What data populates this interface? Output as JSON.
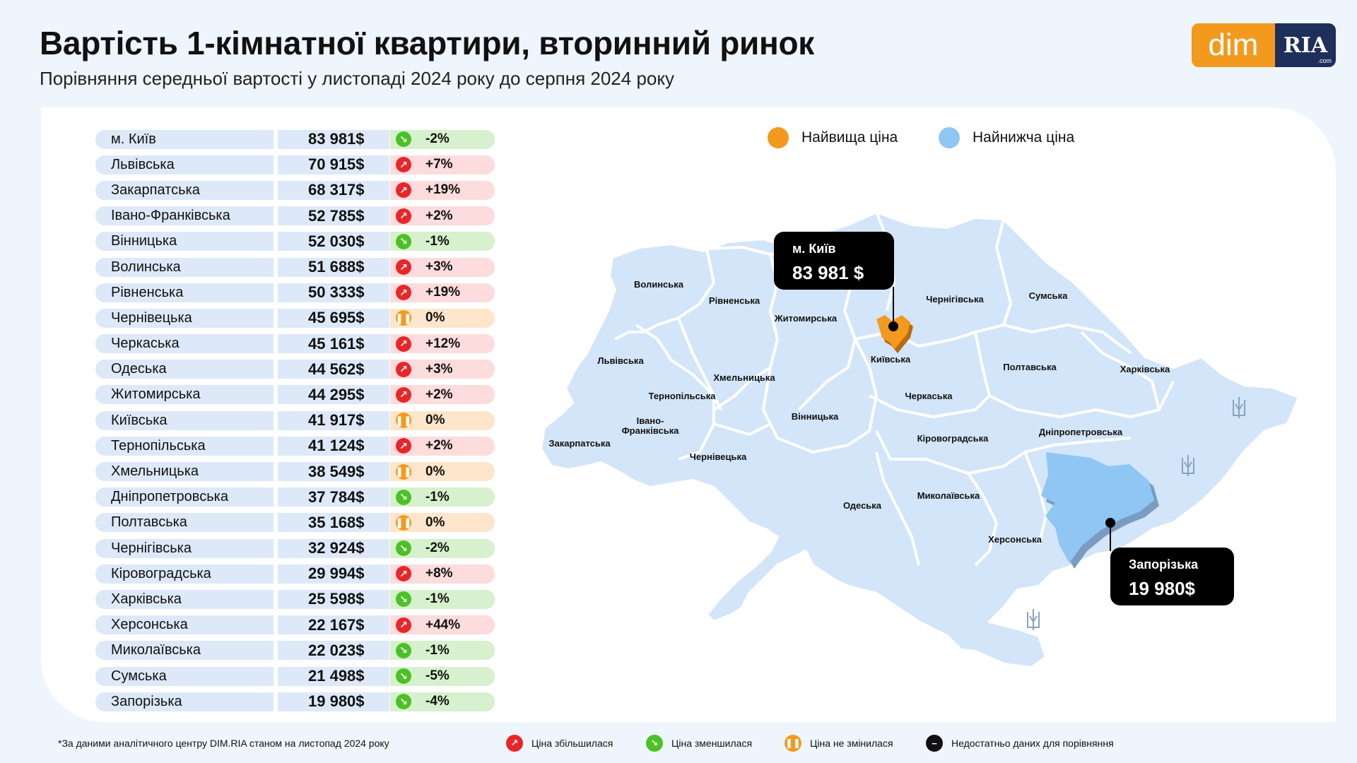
{
  "header": {
    "title": "Вартість 1-кімнатної квартири, вторинний ринок",
    "subtitle": "Порівняння середньої вартості у листопаді 2024 року до серпня 2024 року"
  },
  "logo": {
    "dim": "dim",
    "ria": "RIA",
    "com": ".com"
  },
  "colors": {
    "increase": "#e8262a",
    "decrease": "#4cc127",
    "unchanged": "#f39a1e",
    "highest": "#f39a1e",
    "lowest": "#8fc6f4",
    "map_fill": "#d3e5f8",
    "brand_blue": "#1f2f5c"
  },
  "table": [
    {
      "name": "м. Київ",
      "price": "83 981$",
      "change": "-2%",
      "trend": "down"
    },
    {
      "name": "Львівська",
      "price": "70 915$",
      "change": "+7%",
      "trend": "up"
    },
    {
      "name": "Закарпатська",
      "price": "68 317$",
      "change": "+19%",
      "trend": "up"
    },
    {
      "name": "Івано-Франківська",
      "price": "52 785$",
      "change": "+2%",
      "trend": "up"
    },
    {
      "name": "Вінницька",
      "price": "52 030$",
      "change": "-1%",
      "trend": "down"
    },
    {
      "name": "Волинська",
      "price": "51 688$",
      "change": "+3%",
      "trend": "up"
    },
    {
      "name": "Рівненська",
      "price": "50 333$",
      "change": "+19%",
      "trend": "up"
    },
    {
      "name": "Чернівецька",
      "price": "45 695$",
      "change": "0%",
      "trend": "flat"
    },
    {
      "name": "Черкаська",
      "price": "45 161$",
      "change": "+12%",
      "trend": "up"
    },
    {
      "name": "Одеська",
      "price": "44 562$",
      "change": "+3%",
      "trend": "up"
    },
    {
      "name": "Житомирська",
      "price": "44 295$",
      "change": "+2%",
      "trend": "up"
    },
    {
      "name": "Київська",
      "price": "41 917$",
      "change": "0%",
      "trend": "flat"
    },
    {
      "name": "Тернопільська",
      "price": "41 124$",
      "change": "+2%",
      "trend": "up"
    },
    {
      "name": "Хмельницька",
      "price": "38 549$",
      "change": "0%",
      "trend": "flat"
    },
    {
      "name": "Дніпропетровська",
      "price": "37 784$",
      "change": "-1%",
      "trend": "down"
    },
    {
      "name": "Полтавська",
      "price": "35 168$",
      "change": "0%",
      "trend": "flat"
    },
    {
      "name": "Чернігівська",
      "price": "32 924$",
      "change": "-2%",
      "trend": "down"
    },
    {
      "name": "Кіровоградська",
      "price": "29 994$",
      "change": "+8%",
      "trend": "up"
    },
    {
      "name": "Харківська",
      "price": "25 598$",
      "change": "-1%",
      "trend": "down"
    },
    {
      "name": "Херсонська",
      "price": "22 167$",
      "change": "+44%",
      "trend": "up"
    },
    {
      "name": "Миколаївська",
      "price": "22 023$",
      "change": "-1%",
      "trend": "down"
    },
    {
      "name": "Сумська",
      "price": "21 498$",
      "change": "-5%",
      "trend": "down"
    },
    {
      "name": "Запорізька",
      "price": "19 980$",
      "change": "-4%",
      "trend": "down"
    }
  ],
  "map_legend": {
    "highest": "Найвища ціна",
    "lowest": "Найнижча ціна"
  },
  "map_labels": [
    "Волинська",
    "Рівненська",
    "Житомирська",
    "Чернігівська",
    "Сумська",
    "Київська",
    "Львівська",
    "Хмельницька",
    "Тернопільська",
    "Полтавська",
    "Харківська",
    "Черкаська",
    "Івано-",
    "Франківська",
    "Вінницька",
    "Закарпатська",
    "Чернівецька",
    "Кіровоградська",
    "Дніпропетровська",
    "Одеська",
    "Миколаївська",
    "Херсонська"
  ],
  "callouts": {
    "kyiv": {
      "name": "м. Київ",
      "value": "83 981 $"
    },
    "zaporizhzhia": {
      "name": "Запорізька",
      "value": "19 980$"
    }
  },
  "footer": {
    "note": "*За даними аналітичного центру DIM.RIA станом на листопад 2024 року",
    "legend": {
      "up": "Ціна збільшилася",
      "down": "Ціна зменшилася",
      "flat": "Ціна не змінилася",
      "none": "Недостатньо даних для порівняння"
    }
  }
}
